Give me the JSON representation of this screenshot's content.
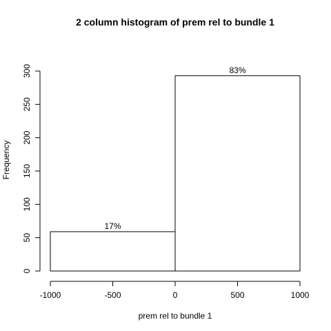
{
  "chart_data": {
    "type": "bar",
    "title": "2 column histogram of prem rel to bundle 1",
    "xlabel": "prem rel to bundle 1",
    "ylabel": "Frequency",
    "xlim": [
      -1000,
      1000
    ],
    "ylim": [
      0,
      300
    ],
    "xticks": [
      -1000,
      -500,
      0,
      500,
      1000
    ],
    "yticks": [
      0,
      50,
      100,
      150,
      200,
      250,
      300
    ],
    "bins": [
      {
        "x0": -1000,
        "x1": 0,
        "value": 59,
        "label": "17%"
      },
      {
        "x0": 0,
        "x1": 1000,
        "value": 293,
        "label": "83%"
      }
    ],
    "grid": false,
    "legend": "none"
  }
}
